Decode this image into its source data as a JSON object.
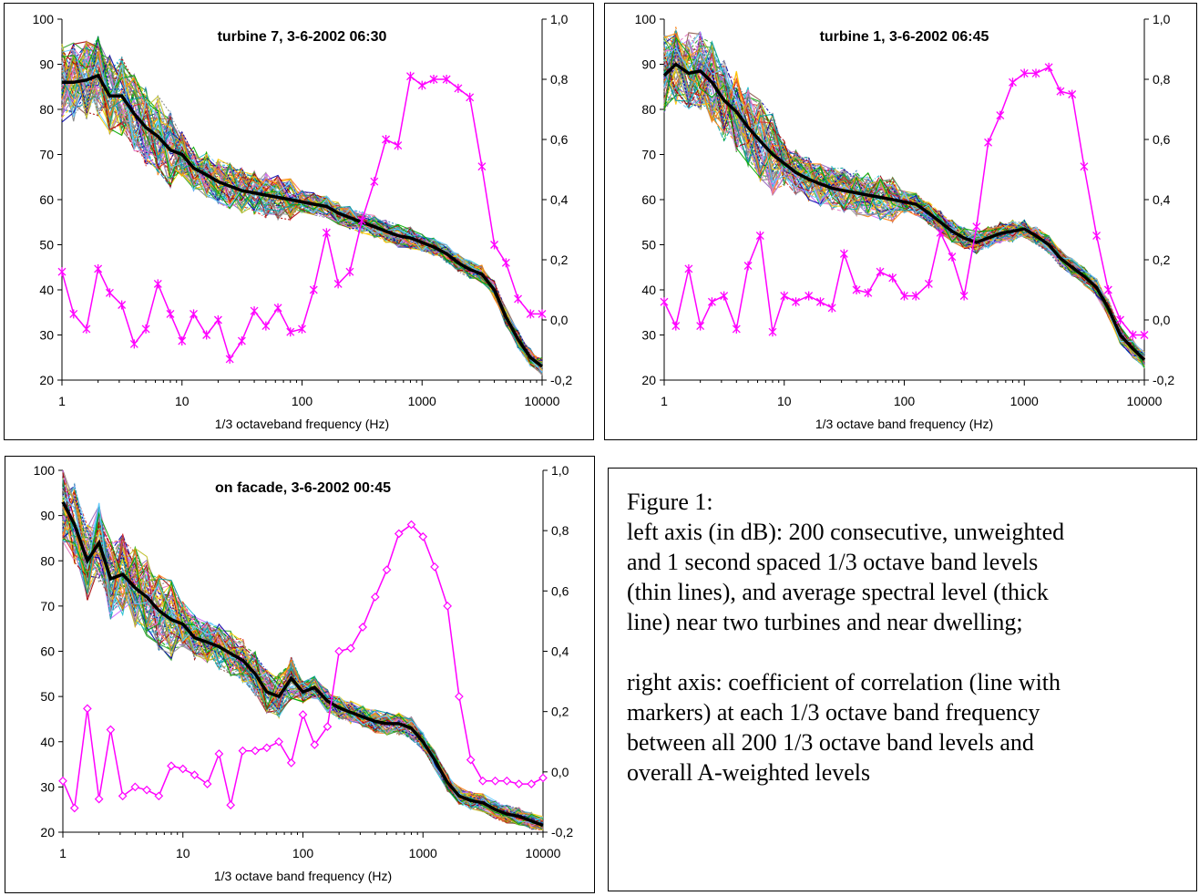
{
  "colors": {
    "avg": "#000000",
    "corr": "#ff00ff",
    "thin": [
      "#1f77b4",
      "#2ca02c",
      "#d62728",
      "#9467bd",
      "#8c564b",
      "#e377c2",
      "#7f7f7f",
      "#bcbd22",
      "#17becf",
      "#ff7f0e",
      "#00a0a0",
      "#ffcc00",
      "#0000aa",
      "#00aa00",
      "#aa0000",
      "#66ccff",
      "#cc66ff",
      "#999999"
    ]
  },
  "chart_data": [
    {
      "type": "line",
      "title": "turbine 7, 3-6-2002 06:30",
      "xlabel": "1/3 octaveband frequency (Hz)",
      "xscale": "log",
      "xlim": [
        1,
        10000
      ],
      "xticks": [
        "1",
        "10",
        "100",
        "1000",
        "10000"
      ],
      "ylim": [
        20,
        100
      ],
      "yticks": [
        "20",
        "30",
        "40",
        "50",
        "60",
        "70",
        "80",
        "90",
        "100"
      ],
      "y2lim": [
        -0.2,
        1.0
      ],
      "y2ticks": [
        "-0,2",
        "0,0",
        "0,2",
        "0,4",
        "0,6",
        "0,8",
        "1,0"
      ],
      "grid": false,
      "marker": "x",
      "x": [
        1,
        1.25,
        1.6,
        2,
        2.5,
        3.15,
        4,
        5,
        6.3,
        8,
        10,
        12.5,
        16,
        20,
        25,
        31.5,
        40,
        50,
        63,
        80,
        100,
        125,
        160,
        200,
        250,
        315,
        400,
        500,
        630,
        800,
        1000,
        1250,
        1600,
        2000,
        2500,
        3150,
        4000,
        5000,
        6300,
        8000,
        10000
      ],
      "avg_spectrum": [
        86,
        86,
        86.5,
        87.5,
        83,
        83,
        79,
        76,
        74,
        71,
        70,
        67,
        65.5,
        64,
        63,
        62,
        61.5,
        61,
        60.5,
        60,
        59.5,
        59,
        58.5,
        57,
        56,
        55,
        54,
        53,
        52,
        51.5,
        50.5,
        49.5,
        48,
        46,
        44.5,
        43.5,
        40,
        34,
        29,
        25,
        23
      ],
      "correlation": [
        0.16,
        0.02,
        -0.03,
        0.17,
        0.09,
        0.05,
        -0.08,
        -0.03,
        0.12,
        0.02,
        -0.07,
        0.02,
        -0.05,
        0.0,
        -0.13,
        -0.07,
        0.03,
        -0.02,
        0.04,
        -0.04,
        -0.03,
        0.1,
        0.29,
        0.12,
        0.16,
        0.33,
        0.46,
        0.6,
        0.58,
        0.81,
        0.78,
        0.8,
        0.8,
        0.77,
        0.74,
        0.51,
        0.25,
        0.19,
        0.07,
        0.02,
        0.02
      ]
    },
    {
      "type": "line",
      "title": "turbine 1, 3-6-2002 06:45",
      "xlabel": "1/3 octave band frequency (Hz)",
      "xscale": "log",
      "xlim": [
        1,
        10000
      ],
      "xticks": [
        "1",
        "10",
        "100",
        "1000",
        "10000"
      ],
      "ylim": [
        20,
        100
      ],
      "yticks": [
        "20",
        "30",
        "40",
        "50",
        "60",
        "70",
        "80",
        "90",
        "100"
      ],
      "y2lim": [
        -0.2,
        1.0
      ],
      "y2ticks": [
        "-0,2",
        "0,0",
        "0,2",
        "0,4",
        "0,6",
        "0,8",
        "1,0"
      ],
      "grid": false,
      "marker": "x",
      "x": [
        1,
        1.25,
        1.6,
        2,
        2.5,
        3.15,
        4,
        5,
        6.3,
        8,
        10,
        12.5,
        16,
        20,
        25,
        31.5,
        40,
        50,
        63,
        80,
        100,
        125,
        160,
        200,
        250,
        315,
        400,
        500,
        630,
        800,
        1000,
        1250,
        1600,
        2000,
        2500,
        3150,
        4000,
        5000,
        6300,
        8000,
        10000
      ],
      "avg_spectrum": [
        87.5,
        90,
        88,
        88.5,
        86,
        82,
        79.5,
        76,
        73,
        70,
        68,
        66,
        64.5,
        63.5,
        62.5,
        62,
        61.5,
        61,
        60.5,
        60,
        59.5,
        59,
        57,
        55,
        53,
        51.5,
        50.5,
        51.5,
        52.5,
        53,
        53.5,
        52,
        50,
        47,
        45,
        43,
        40.5,
        36,
        30,
        27,
        24.5
      ],
      "correlation": [
        0.06,
        -0.02,
        0.17,
        -0.02,
        0.06,
        0.08,
        -0.03,
        0.18,
        0.28,
        -0.04,
        0.08,
        0.06,
        0.08,
        0.06,
        0.04,
        0.22,
        0.1,
        0.09,
        0.16,
        0.14,
        0.08,
        0.08,
        0.12,
        0.29,
        0.21,
        0.08,
        0.31,
        0.59,
        0.68,
        0.79,
        0.82,
        0.82,
        0.84,
        0.76,
        0.75,
        0.51,
        0.28,
        0.1,
        0.0,
        -0.05,
        -0.05
      ]
    },
    {
      "type": "line",
      "title": "on facade, 3-6-2002 00:45",
      "xlabel": "1/3 octave band frequency (Hz)",
      "xscale": "log",
      "xlim": [
        1,
        10000
      ],
      "xticks": [
        "1",
        "10",
        "100",
        "1000",
        "10000"
      ],
      "ylim": [
        20,
        100
      ],
      "yticks": [
        "20",
        "30",
        "40",
        "50",
        "60",
        "70",
        "80",
        "90",
        "100"
      ],
      "y2lim": [
        -0.2,
        1.0
      ],
      "y2ticks": [
        "-0,2",
        "0,0",
        "0,2",
        "0,4",
        "0,6",
        "0,8",
        "1,0"
      ],
      "grid": false,
      "marker": "diamond",
      "x": [
        1,
        1.25,
        1.6,
        2,
        2.5,
        3.15,
        4,
        5,
        6.3,
        8,
        10,
        12.5,
        16,
        20,
        25,
        31.5,
        40,
        50,
        63,
        80,
        100,
        125,
        160,
        200,
        250,
        315,
        400,
        500,
        630,
        800,
        1000,
        1250,
        1600,
        2000,
        2500,
        3150,
        4000,
        5000,
        6300,
        8000,
        10000
      ],
      "avg_spectrum": [
        93,
        88,
        80,
        84,
        76,
        77,
        74,
        72,
        69,
        67,
        66,
        63,
        62,
        61,
        59.5,
        58,
        55,
        51,
        50,
        54,
        51,
        52,
        49,
        47.5,
        46.5,
        45.5,
        44.5,
        44,
        44,
        43,
        40,
        36,
        31,
        28,
        27,
        26.5,
        25,
        24,
        23.5,
        22.5,
        21.5
      ],
      "correlation": [
        -0.03,
        -0.12,
        0.21,
        -0.09,
        0.14,
        -0.08,
        -0.05,
        -0.06,
        -0.08,
        0.02,
        0.01,
        -0.01,
        -0.04,
        0.06,
        -0.11,
        0.07,
        0.07,
        0.08,
        0.1,
        0.03,
        0.19,
        0.09,
        0.15,
        0.4,
        0.41,
        0.48,
        0.58,
        0.67,
        0.79,
        0.82,
        0.78,
        0.68,
        0.55,
        0.25,
        0.04,
        -0.03,
        -0.03,
        -0.03,
        -0.04,
        -0.04,
        -0.02
      ]
    }
  ],
  "caption": {
    "lines1": [
      "Figure 1:",
      "left axis (in dB): 200 consecutive, unweighted",
      "and 1 second spaced 1/3 octave band levels",
      "(thin lines), and average spectral level (thick",
      "line) near two turbines and near dwelling;"
    ],
    "lines2": [
      "right axis: coefficient of correlation (line with",
      "markers) at each 1/3 octave band frequency",
      "between all 200 1/3 octave band levels and",
      "overall A-weighted levels"
    ]
  }
}
